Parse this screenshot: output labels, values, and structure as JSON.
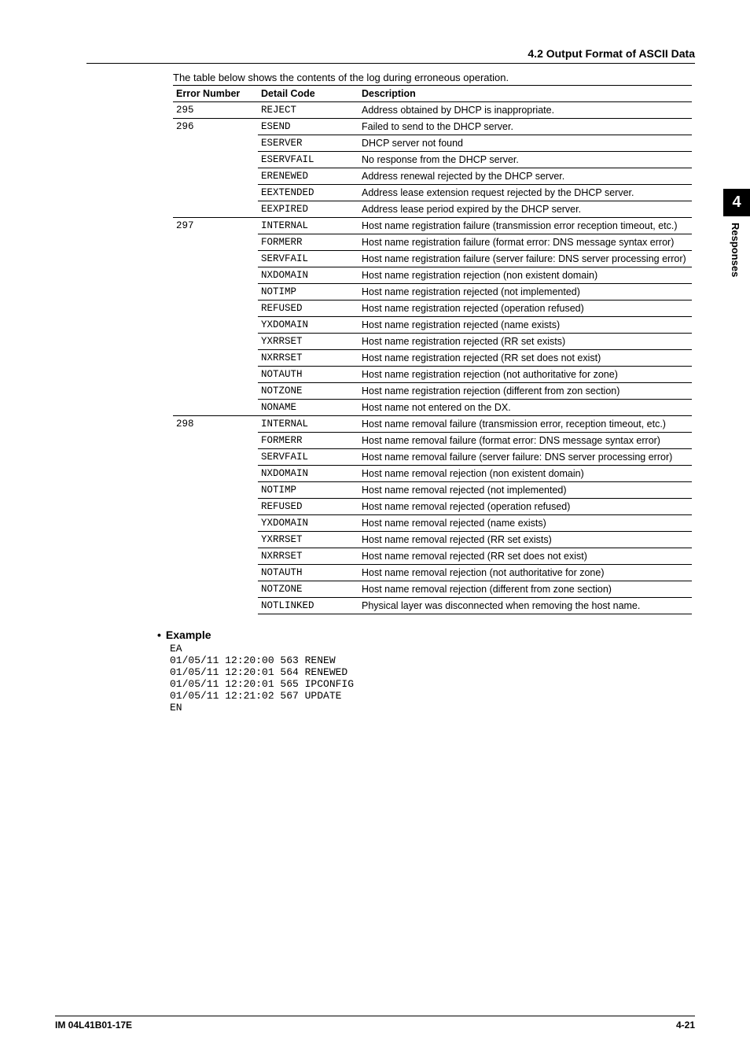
{
  "header": {
    "section": "4.2  Output Format of ASCII Data"
  },
  "table": {
    "intro": "The table below shows the contents of the log during erroneous operation.",
    "columns": [
      "Error Number",
      "Detail Code",
      "Description"
    ],
    "groups": [
      {
        "errnum": "295",
        "rows": [
          {
            "detail": "REJECT",
            "desc": "Address obtained by DHCP is inappropriate."
          }
        ]
      },
      {
        "errnum": "296",
        "rows": [
          {
            "detail": "ESEND",
            "desc": "Failed to send to the DHCP server."
          },
          {
            "detail": "ESERVER",
            "desc": "DHCP server not found"
          },
          {
            "detail": "ESERVFAIL",
            "desc": "No response from the DHCP server."
          },
          {
            "detail": "ERENEWED",
            "desc": "Address renewal rejected by the DHCP server."
          },
          {
            "detail": "EEXTENDED",
            "desc": "Address lease extension request rejected by the DHCP server."
          },
          {
            "detail": "EEXPIRED",
            "desc": "Address lease period expired by the DHCP server."
          }
        ]
      },
      {
        "errnum": "297",
        "rows": [
          {
            "detail": "INTERNAL",
            "desc": "Host name registration failure (transmission error reception timeout, etc.)"
          },
          {
            "detail": "FORMERR",
            "desc": "Host name registration failure (format error: DNS message syntax error)"
          },
          {
            "detail": "SERVFAIL",
            "desc": "Host name registration failure (server failure: DNS server processing error)"
          },
          {
            "detail": "NXDOMAIN",
            "desc": "Host name registration rejection (non existent domain)"
          },
          {
            "detail": "NOTIMP",
            "desc": "Host name registration rejected (not implemented)"
          },
          {
            "detail": "REFUSED",
            "desc": "Host name registration rejected (operation refused)"
          },
          {
            "detail": "YXDOMAIN",
            "desc": "Host name registration rejected (name exists)"
          },
          {
            "detail": "YXRRSET",
            "desc": "Host name registration rejected (RR set exists)"
          },
          {
            "detail": "NXRRSET",
            "desc": "Host name registration rejected (RR set does not exist)"
          },
          {
            "detail": "NOTAUTH",
            "desc": "Host name registration rejection (not authoritative for zone)"
          },
          {
            "detail": "NOTZONE",
            "desc": "Host name registration rejection (different from zon section)"
          },
          {
            "detail": "NONAME",
            "desc": "Host name not entered on the DX."
          }
        ]
      },
      {
        "errnum": "298",
        "rows": [
          {
            "detail": "INTERNAL",
            "desc": "Host name removal failure (transmission error, reception timeout, etc.)"
          },
          {
            "detail": "FORMERR",
            "desc": "Host name removal failure (format error: DNS message syntax error)"
          },
          {
            "detail": "SERVFAIL",
            "desc": "Host name removal failure (server failure: DNS server processing error)"
          },
          {
            "detail": "NXDOMAIN",
            "desc": "Host name removal rejection (non existent domain)"
          },
          {
            "detail": "NOTIMP",
            "desc": "Host name removal rejected (not implemented)"
          },
          {
            "detail": "REFUSED",
            "desc": "Host name removal rejected (operation refused)"
          },
          {
            "detail": "YXDOMAIN",
            "desc": "Host name removal rejected (name exists)"
          },
          {
            "detail": "YXRRSET",
            "desc": "Host name removal rejected (RR set exists)"
          },
          {
            "detail": "NXRRSET",
            "desc": "Host name removal rejected (RR set does not exist)"
          },
          {
            "detail": "NOTAUTH",
            "desc": "Host name removal rejection (not authoritative for zone)"
          },
          {
            "detail": "NOTZONE",
            "desc": "Host name removal rejection (different from zone section)"
          },
          {
            "detail": "NOTLINKED",
            "desc": "Physical layer was disconnected when removing the host name."
          }
        ]
      }
    ]
  },
  "example": {
    "heading": "Example",
    "bullet": "•",
    "lines": "EA\n01/05/11 12:20:00 563 RENEW\n01/05/11 12:20:01 564 RENEWED\n01/05/11 12:20:01 565 IPCONFIG\n01/05/11 12:21:02 567 UPDATE\nEN"
  },
  "tab": {
    "num": "4",
    "label": "Responses"
  },
  "footer": {
    "left": "IM 04L41B01-17E",
    "right": "4-21"
  }
}
